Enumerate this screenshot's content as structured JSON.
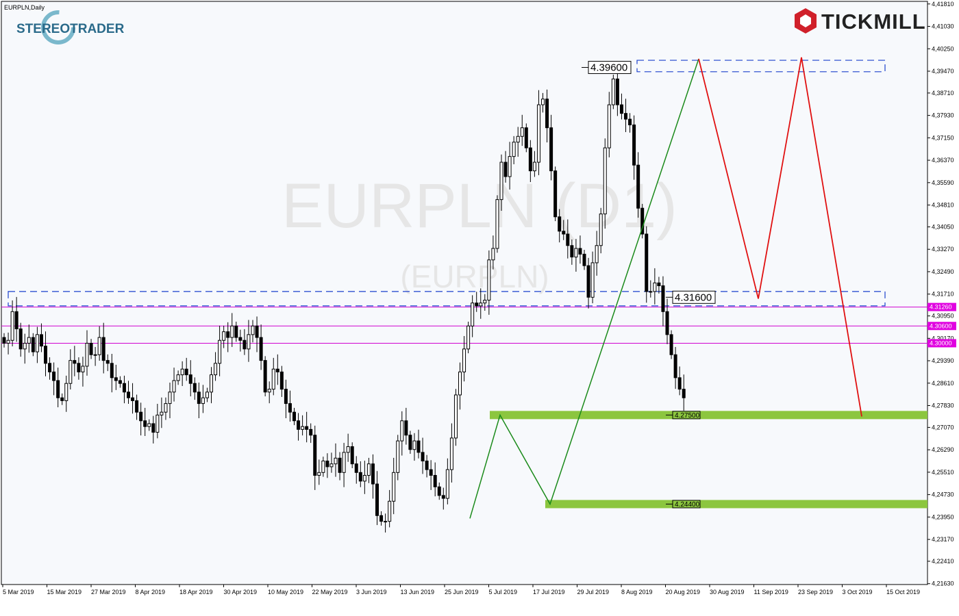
{
  "chart_data": {
    "type": "candlestick",
    "symbol_label": "EURPLN,Daily",
    "watermark": {
      "line1": "EURPLN (D1)",
      "line2": "(EURPLN)"
    },
    "logos": {
      "left": "STEREOTRADER",
      "right": "TICKMILL"
    },
    "y_axis": {
      "range": [
        4.216,
        4.419
      ],
      "ticks": [
        "4,41810",
        "4,41030",
        "4,40250",
        "4,39470",
        "4,38710",
        "4,37930",
        "4,37150",
        "4,36370",
        "4,35590",
        "4,34810",
        "4,34050",
        "4,33270",
        "4,32490",
        "4,31710",
        "4,30950",
        "4,30170",
        "4,29390",
        "4,28610",
        "4,27830",
        "4,27070",
        "4,26290",
        "4,25510",
        "4,24730",
        "4,23950",
        "4,23170",
        "4,22410",
        "4,21630"
      ]
    },
    "x_axis": {
      "ticks": [
        "5 Mar 2019",
        "15 Mar 2019",
        "27 Mar 2019",
        "8 Apr 2019",
        "18 Apr 2019",
        "30 Apr 2019",
        "10 May 2019",
        "22 May 2019",
        "3 Jun 2019",
        "13 Jun 2019",
        "25 Jun 2019",
        "5 Jul 2019",
        "17 Jul 2019",
        "29 Jul 2019",
        "8 Aug 2019",
        "20 Aug 2019",
        "30 Aug 2019",
        "11 Sep 2019",
        "23 Sep 2019",
        "3 Oct 2019",
        "15 Oct 2019"
      ]
    },
    "levels": {
      "magenta": [
        {
          "label": "4.31260",
          "value": 4.3126
        },
        {
          "label": "4.30600",
          "value": 4.306
        },
        {
          "label": "4.30000",
          "value": 4.3
        }
      ],
      "zones": [
        {
          "label": "4.39600",
          "top": 4.3985,
          "bottom": 4.3945,
          "color": "#1a3fcc"
        },
        {
          "label": "4.31600",
          "top": 4.318,
          "bottom": 4.313,
          "color": "#1a3fcc"
        }
      ],
      "support": [
        {
          "label": "4.27500",
          "value": 4.275,
          "color": "#8cc63f"
        },
        {
          "label": "4.24400",
          "value": 4.244,
          "color": "#8cc63f"
        }
      ]
    },
    "candles_close": [
      4.3,
      4.301,
      4.311,
      4.305,
      4.298,
      4.3,
      4.302,
      4.297,
      4.303,
      4.299,
      4.293,
      4.29,
      4.287,
      4.281,
      4.28,
      4.286,
      4.294,
      4.293,
      4.29,
      4.292,
      4.3,
      4.296,
      4.296,
      4.302,
      4.294,
      4.293,
      4.288,
      4.287,
      4.286,
      4.283,
      4.281,
      4.28,
      4.276,
      4.273,
      4.271,
      4.272,
      4.269,
      4.275,
      4.276,
      4.279,
      4.283,
      4.287,
      4.289,
      4.291,
      4.289,
      4.286,
      4.283,
      4.279,
      4.281,
      4.283,
      4.289,
      4.293,
      4.301,
      4.304,
      4.302,
      4.306,
      4.302,
      4.301,
      4.298,
      4.303,
      4.306,
      4.302,
      4.294,
      4.283,
      4.284,
      4.291,
      4.29,
      4.284,
      4.279,
      4.276,
      4.273,
      4.27,
      4.271,
      4.27,
      4.268,
      4.254,
      4.255,
      4.259,
      4.257,
      4.258,
      4.26,
      4.255,
      4.262,
      4.264,
      4.258,
      4.255,
      4.252,
      4.254,
      4.258,
      4.251,
      4.24,
      4.238,
      4.238,
      4.245,
      4.255,
      4.266,
      4.273,
      4.268,
      4.263,
      4.266,
      4.262,
      4.259,
      4.256,
      4.254,
      4.25,
      4.247,
      4.246,
      4.256,
      4.267,
      4.282,
      4.29,
      4.298,
      4.306,
      4.314,
      4.313,
      4.314,
      4.315,
      4.329,
      4.333,
      4.35,
      4.363,
      4.358,
      4.365,
      4.37,
      4.372,
      4.375,
      4.368,
      4.36,
      4.363,
      4.383,
      4.385,
      4.375,
      4.36,
      4.344,
      4.339,
      4.338,
      4.334,
      4.33,
      4.333,
      4.331,
      4.327,
      4.316,
      4.328,
      4.334,
      4.345,
      4.368,
      4.383,
      4.392,
      4.383,
      4.38,
      4.378,
      4.376,
      4.362,
      4.347,
      4.338,
      4.318,
      4.318,
      4.321,
      4.32,
      4.311,
      4.303,
      4.296,
      4.288,
      4.284,
      4.281
    ]
  }
}
